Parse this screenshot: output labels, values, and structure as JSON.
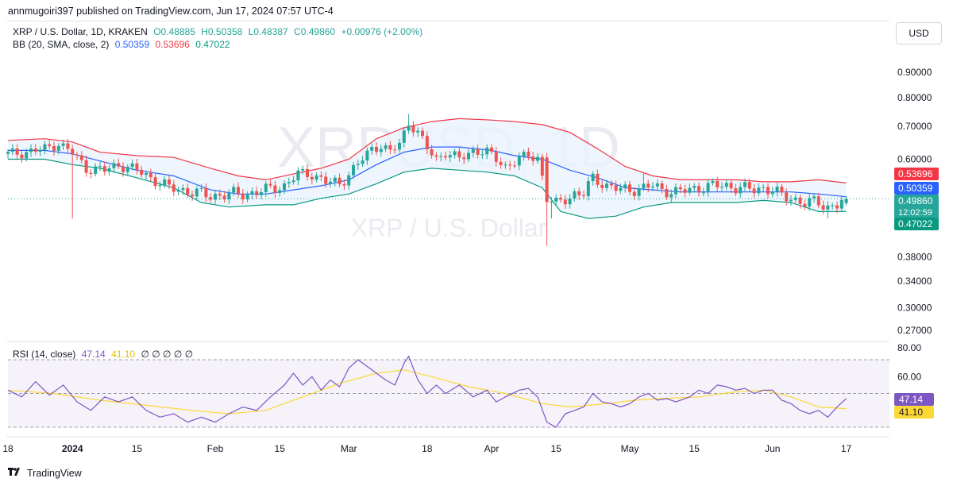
{
  "header": {
    "published": "annmugoiri397 published on TradingView.com, Jun 17, 2024 07:57 UTC-4"
  },
  "legend": {
    "symbol": "XRP / U.S. Dollar, 1D, KRAKEN",
    "open": "O0.48885",
    "high": "H0.50358",
    "low": "L0.48387",
    "close": "C0.49860",
    "change": "+0.00976 (+2.00%)",
    "bb_label": "BB (20, SMA, close, 2)",
    "bb_basis": "0.50359",
    "bb_upper": "0.53696",
    "bb_lower": "0.47022",
    "rsi_label": "RSI (14, close)",
    "rsi_value": "47.14",
    "rsi_ma": "41.10",
    "rsi_extra": "∅ ∅ ∅ ∅ ∅"
  },
  "toolbar": {
    "currency": "USD"
  },
  "watermark": {
    "ticker": "XRPUSD, 1D",
    "name": "XRP / U.S. Dollar"
  },
  "footer": {
    "brand": "TradingView",
    "logo": "tradingview-logo-icon"
  },
  "colors": {
    "up": "#26a69a",
    "down": "#ef5350",
    "basis": "#2962ff",
    "upper": "#f23645",
    "lower": "#089981",
    "rsi": "#7e57c2",
    "rsi_ma": "#fdd835",
    "bb_fill": "#eaf3fc"
  },
  "chart_data": {
    "type": "candlestick",
    "price_axis": {
      "scale": "log",
      "ticks": [
        "0.90000",
        "0.80000",
        "0.70000",
        "0.60000",
        "0.38000",
        "0.34000",
        "0.30000",
        "0.27000"
      ],
      "tick_values": [
        0.9,
        0.8,
        0.7,
        0.6,
        0.38,
        0.34,
        0.3,
        0.27
      ]
    },
    "price_labels": [
      {
        "text": "0.53696",
        "value": 0.53696,
        "kind": "upper"
      },
      {
        "text": "0.50359",
        "value": 0.50359,
        "kind": "basis"
      },
      {
        "text": "0.49860",
        "sub": "12:02:59",
        "value": 0.4986,
        "kind": "last"
      },
      {
        "text": "0.47022",
        "value": 0.47022,
        "kind": "lower"
      }
    ],
    "x_ticks": [
      {
        "label": "18",
        "day": 0
      },
      {
        "label": "2024",
        "day": 14,
        "bold": true
      },
      {
        "label": "15",
        "day": 28
      },
      {
        "label": "Feb",
        "day": 45
      },
      {
        "label": "15",
        "day": 59
      },
      {
        "label": "Mar",
        "day": 74
      },
      {
        "label": "18",
        "day": 91
      },
      {
        "label": "Apr",
        "day": 105
      },
      {
        "label": "15",
        "day": 119
      },
      {
        "label": "May",
        "day": 135
      },
      {
        "label": "15",
        "day": 149
      },
      {
        "label": "Jun",
        "day": 166
      },
      {
        "label": "17",
        "day": 182
      }
    ],
    "rsi_axis": {
      "ticks": [
        "80.00",
        "60.00"
      ],
      "tick_values": [
        80,
        60
      ],
      "upper_band": 70,
      "lower_band": 30,
      "mid": 50
    },
    "rsi_labels": [
      {
        "text": "47.14",
        "value": 47.14,
        "kind": "rsi"
      },
      {
        "text": "41.10",
        "value": 41.1,
        "kind": "rsi_ma"
      }
    ],
    "close_anchors": [
      [
        0,
        0.615
      ],
      [
        3,
        0.618
      ],
      [
        8,
        0.63
      ],
      [
        11,
        0.645
      ],
      [
        14,
        0.618
      ],
      [
        17,
        0.575
      ],
      [
        21,
        0.57
      ],
      [
        24,
        0.585
      ],
      [
        28,
        0.57
      ],
      [
        31,
        0.55
      ],
      [
        35,
        0.525
      ],
      [
        40,
        0.515
      ],
      [
        44,
        0.505
      ],
      [
        48,
        0.51
      ],
      [
        52,
        0.51
      ],
      [
        56,
        0.52
      ],
      [
        60,
        0.53
      ],
      [
        63,
        0.56
      ],
      [
        66,
        0.56
      ],
      [
        69,
        0.54
      ],
      [
        72,
        0.535
      ],
      [
        74,
        0.56
      ],
      [
        77,
        0.6
      ],
      [
        79,
        0.63
      ],
      [
        81,
        0.64
      ],
      [
        83,
        0.62
      ],
      [
        85,
        0.645
      ],
      [
        87,
        0.71
      ],
      [
        89,
        0.68
      ],
      [
        91,
        0.63
      ],
      [
        93,
        0.6
      ],
      [
        95,
        0.62
      ],
      [
        98,
        0.6
      ],
      [
        101,
        0.625
      ],
      [
        104,
        0.62
      ],
      [
        106,
        0.6
      ],
      [
        108,
        0.58
      ],
      [
        111,
        0.6
      ],
      [
        113,
        0.61
      ],
      [
        115,
        0.605
      ],
      [
        117,
        0.5
      ],
      [
        119,
        0.485
      ],
      [
        121,
        0.5
      ],
      [
        123,
        0.51
      ],
      [
        125,
        0.51
      ],
      [
        127,
        0.55
      ],
      [
        130,
        0.53
      ],
      [
        133,
        0.52
      ],
      [
        135,
        0.52
      ],
      [
        138,
        0.525
      ],
      [
        140,
        0.53
      ],
      [
        142,
        0.52
      ],
      [
        145,
        0.515
      ],
      [
        148,
        0.52
      ],
      [
        150,
        0.525
      ],
      [
        153,
        0.53
      ],
      [
        156,
        0.53
      ],
      [
        159,
        0.525
      ],
      [
        162,
        0.52
      ],
      [
        164,
        0.525
      ],
      [
        166,
        0.52
      ],
      [
        168,
        0.505
      ],
      [
        170,
        0.5
      ],
      [
        173,
        0.49
      ],
      [
        176,
        0.49
      ],
      [
        178,
        0.48
      ],
      [
        180,
        0.486
      ],
      [
        182,
        0.4986
      ]
    ],
    "special_candles": [
      {
        "day": 14,
        "low": 0.455
      },
      {
        "day": 87,
        "high": 0.74
      },
      {
        "day": 117,
        "open": 0.605,
        "low": 0.4
      },
      {
        "day": 118,
        "low": 0.455
      },
      {
        "day": 138,
        "high": 0.565
      },
      {
        "day": 178,
        "low": 0.455
      },
      {
        "day": 182,
        "open": 0.48885,
        "high": 0.50358,
        "low": 0.48387,
        "close": 0.4986
      }
    ],
    "bb_upper": [
      [
        0,
        0.655
      ],
      [
        8,
        0.66
      ],
      [
        14,
        0.65
      ],
      [
        20,
        0.62
      ],
      [
        28,
        0.61
      ],
      [
        36,
        0.605
      ],
      [
        44,
        0.575
      ],
      [
        50,
        0.555
      ],
      [
        56,
        0.545
      ],
      [
        62,
        0.56
      ],
      [
        68,
        0.575
      ],
      [
        74,
        0.6
      ],
      [
        80,
        0.66
      ],
      [
        86,
        0.695
      ],
      [
        92,
        0.715
      ],
      [
        98,
        0.725
      ],
      [
        105,
        0.72
      ],
      [
        110,
        0.715
      ],
      [
        116,
        0.705
      ],
      [
        122,
        0.68
      ],
      [
        128,
        0.63
      ],
      [
        134,
        0.58
      ],
      [
        140,
        0.555
      ],
      [
        146,
        0.545
      ],
      [
        152,
        0.545
      ],
      [
        158,
        0.545
      ],
      [
        164,
        0.54
      ],
      [
        170,
        0.54
      ],
      [
        176,
        0.545
      ],
      [
        182,
        0.537
      ]
    ],
    "bb_basis": [
      [
        0,
        0.625
      ],
      [
        8,
        0.625
      ],
      [
        14,
        0.615
      ],
      [
        20,
        0.595
      ],
      [
        28,
        0.57
      ],
      [
        36,
        0.555
      ],
      [
        44,
        0.52
      ],
      [
        50,
        0.51
      ],
      [
        56,
        0.51
      ],
      [
        62,
        0.52
      ],
      [
        68,
        0.53
      ],
      [
        74,
        0.545
      ],
      [
        80,
        0.585
      ],
      [
        86,
        0.62
      ],
      [
        92,
        0.635
      ],
      [
        98,
        0.635
      ],
      [
        105,
        0.625
      ],
      [
        110,
        0.61
      ],
      [
        116,
        0.6
      ],
      [
        122,
        0.57
      ],
      [
        128,
        0.55
      ],
      [
        134,
        0.525
      ],
      [
        140,
        0.52
      ],
      [
        146,
        0.515
      ],
      [
        152,
        0.515
      ],
      [
        158,
        0.515
      ],
      [
        164,
        0.515
      ],
      [
        170,
        0.515
      ],
      [
        176,
        0.51
      ],
      [
        182,
        0.5036
      ]
    ],
    "bb_lower": [
      [
        0,
        0.6
      ],
      [
        8,
        0.6
      ],
      [
        14,
        0.585
      ],
      [
        20,
        0.575
      ],
      [
        28,
        0.55
      ],
      [
        36,
        0.525
      ],
      [
        42,
        0.49
      ],
      [
        48,
        0.48
      ],
      [
        56,
        0.485
      ],
      [
        62,
        0.485
      ],
      [
        68,
        0.5
      ],
      [
        74,
        0.51
      ],
      [
        80,
        0.535
      ],
      [
        86,
        0.565
      ],
      [
        92,
        0.575
      ],
      [
        98,
        0.57
      ],
      [
        104,
        0.565
      ],
      [
        110,
        0.555
      ],
      [
        116,
        0.525
      ],
      [
        120,
        0.47
      ],
      [
        126,
        0.455
      ],
      [
        132,
        0.46
      ],
      [
        138,
        0.48
      ],
      [
        144,
        0.49
      ],
      [
        150,
        0.49
      ],
      [
        158,
        0.49
      ],
      [
        164,
        0.495
      ],
      [
        170,
        0.49
      ],
      [
        176,
        0.47
      ],
      [
        182,
        0.4702
      ]
    ],
    "rsi_series": [
      [
        0,
        52
      ],
      [
        3,
        48
      ],
      [
        6,
        57
      ],
      [
        9,
        49
      ],
      [
        12,
        55
      ],
      [
        15,
        45
      ],
      [
        18,
        40
      ],
      [
        21,
        48
      ],
      [
        24,
        45
      ],
      [
        27,
        48
      ],
      [
        30,
        40
      ],
      [
        33,
        36
      ],
      [
        36,
        38
      ],
      [
        39,
        33
      ],
      [
        42,
        36
      ],
      [
        45,
        33
      ],
      [
        48,
        38
      ],
      [
        51,
        42
      ],
      [
        54,
        40
      ],
      [
        57,
        48
      ],
      [
        60,
        55
      ],
      [
        62,
        62
      ],
      [
        64,
        55
      ],
      [
        66,
        60
      ],
      [
        68,
        52
      ],
      [
        70,
        58
      ],
      [
        72,
        54
      ],
      [
        74,
        65
      ],
      [
        76,
        70
      ],
      [
        78,
        66
      ],
      [
        80,
        62
      ],
      [
        82,
        58
      ],
      [
        84,
        55
      ],
      [
        86,
        68
      ],
      [
        87,
        72
      ],
      [
        89,
        58
      ],
      [
        91,
        50
      ],
      [
        93,
        55
      ],
      [
        95,
        50
      ],
      [
        98,
        55
      ],
      [
        101,
        48
      ],
      [
        104,
        52
      ],
      [
        106,
        45
      ],
      [
        108,
        48
      ],
      [
        111,
        52
      ],
      [
        113,
        53
      ],
      [
        115,
        48
      ],
      [
        117,
        33
      ],
      [
        119,
        30
      ],
      [
        121,
        38
      ],
      [
        123,
        40
      ],
      [
        125,
        42
      ],
      [
        127,
        50
      ],
      [
        129,
        45
      ],
      [
        131,
        44
      ],
      [
        133,
        42
      ],
      [
        135,
        44
      ],
      [
        137,
        48
      ],
      [
        139,
        50
      ],
      [
        141,
        46
      ],
      [
        143,
        47
      ],
      [
        145,
        45
      ],
      [
        148,
        48
      ],
      [
        150,
        52
      ],
      [
        152,
        50
      ],
      [
        154,
        55
      ],
      [
        156,
        54
      ],
      [
        158,
        52
      ],
      [
        160,
        53
      ],
      [
        162,
        50
      ],
      [
        164,
        52
      ],
      [
        166,
        52
      ],
      [
        168,
        46
      ],
      [
        170,
        44
      ],
      [
        172,
        40
      ],
      [
        174,
        38
      ],
      [
        176,
        40
      ],
      [
        178,
        36
      ],
      [
        180,
        42
      ],
      [
        182,
        47
      ]
    ],
    "rsi_ma_series": [
      [
        0,
        52
      ],
      [
        10,
        50
      ],
      [
        20,
        46
      ],
      [
        30,
        43
      ],
      [
        40,
        40
      ],
      [
        48,
        38
      ],
      [
        56,
        40
      ],
      [
        64,
        48
      ],
      [
        72,
        56
      ],
      [
        80,
        62
      ],
      [
        86,
        64
      ],
      [
        92,
        60
      ],
      [
        100,
        54
      ],
      [
        108,
        50
      ],
      [
        116,
        44
      ],
      [
        122,
        42
      ],
      [
        130,
        44
      ],
      [
        136,
        46
      ],
      [
        142,
        47
      ],
      [
        150,
        48
      ],
      [
        158,
        51
      ],
      [
        164,
        52
      ],
      [
        170,
        48
      ],
      [
        176,
        42
      ],
      [
        182,
        41
      ]
    ]
  }
}
